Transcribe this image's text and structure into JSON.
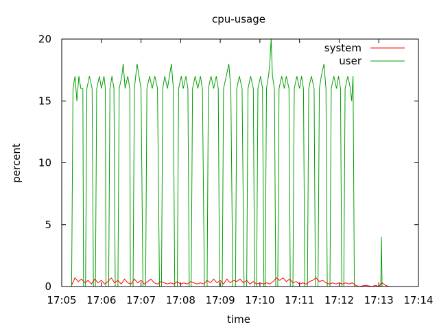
{
  "chart_data": {
    "type": "line",
    "title": "cpu-usage",
    "xlabel": "time",
    "ylabel": "percent",
    "ylim": [
      0,
      20
    ],
    "xlim": [
      "17:05",
      "17:14"
    ],
    "x_ticks": [
      "17:05",
      "17:06",
      "17:07",
      "17:08",
      "17:09",
      "17:10",
      "17:11",
      "17:12",
      "17:13",
      "17:14"
    ],
    "y_ticks": [
      "0",
      "5",
      "10",
      "15",
      "20"
    ],
    "legend_position": "top-right",
    "series": [
      {
        "name": "system",
        "color": "#ff0000",
        "points": [
          [
            "17:05:15",
            0.1
          ],
          [
            "17:05:20",
            0.7
          ],
          [
            "17:05:25",
            0.4
          ],
          [
            "17:05:30",
            0.6
          ],
          [
            "17:05:35",
            0.3
          ],
          [
            "17:05:40",
            0.5
          ],
          [
            "17:05:45",
            0.2
          ],
          [
            "17:05:50",
            0.6
          ],
          [
            "17:05:55",
            0.3
          ],
          [
            "17:06:00",
            0.5
          ],
          [
            "17:06:05",
            0.2
          ],
          [
            "17:06:10",
            0.4
          ],
          [
            "17:06:15",
            0.7
          ],
          [
            "17:06:20",
            0.3
          ],
          [
            "17:06:25",
            0.5
          ],
          [
            "17:06:30",
            0.2
          ],
          [
            "17:06:35",
            0.6
          ],
          [
            "17:06:40",
            0.3
          ],
          [
            "17:06:45",
            0.2
          ],
          [
            "17:06:50",
            0.6
          ],
          [
            "17:06:55",
            0.3
          ],
          [
            "17:07:00",
            0.5
          ],
          [
            "17:07:05",
            0.2
          ],
          [
            "17:07:10",
            0.4
          ],
          [
            "17:07:15",
            0.6
          ],
          [
            "17:07:20",
            0.3
          ],
          [
            "17:07:25",
            0.2
          ],
          [
            "17:07:30",
            0.4
          ],
          [
            "17:07:35",
            0.3
          ],
          [
            "17:07:40",
            0.2
          ],
          [
            "17:07:45",
            0.3
          ],
          [
            "17:07:50",
            0.2
          ],
          [
            "17:07:55",
            0.4
          ],
          [
            "17:08:00",
            0.2
          ],
          [
            "17:08:05",
            0.3
          ],
          [
            "17:08:10",
            0.2
          ],
          [
            "17:08:15",
            0.4
          ],
          [
            "17:08:20",
            0.3
          ],
          [
            "17:08:25",
            0.2
          ],
          [
            "17:08:30",
            0.3
          ],
          [
            "17:08:35",
            0.2
          ],
          [
            "17:08:40",
            0.5
          ],
          [
            "17:08:45",
            0.3
          ],
          [
            "17:08:50",
            0.6
          ],
          [
            "17:08:55",
            0.3
          ],
          [
            "17:09:00",
            0.5
          ],
          [
            "17:09:05",
            0.2
          ],
          [
            "17:09:10",
            0.6
          ],
          [
            "17:09:15",
            0.3
          ],
          [
            "17:09:20",
            0.5
          ],
          [
            "17:09:25",
            0.4
          ],
          [
            "17:09:30",
            0.6
          ],
          [
            "17:09:35",
            0.3
          ],
          [
            "17:09:40",
            0.5
          ],
          [
            "17:09:45",
            0.2
          ],
          [
            "17:09:50",
            0.4
          ],
          [
            "17:09:55",
            0.2
          ],
          [
            "17:10:00",
            0.3
          ],
          [
            "17:10:05",
            0.2
          ],
          [
            "17:10:10",
            0.3
          ],
          [
            "17:10:15",
            0.2
          ],
          [
            "17:10:20",
            0.4
          ],
          [
            "17:10:25",
            0.7
          ],
          [
            "17:10:30",
            0.5
          ],
          [
            "17:10:35",
            0.7
          ],
          [
            "17:10:40",
            0.4
          ],
          [
            "17:10:45",
            0.6
          ],
          [
            "17:10:50",
            0.3
          ],
          [
            "17:10:55",
            0.4
          ],
          [
            "17:11:00",
            0.2
          ],
          [
            "17:11:05",
            0.3
          ],
          [
            "17:11:10",
            0.2
          ],
          [
            "17:11:15",
            0.4
          ],
          [
            "17:11:20",
            0.5
          ],
          [
            "17:11:25",
            0.7
          ],
          [
            "17:11:30",
            0.4
          ],
          [
            "17:11:35",
            0.5
          ],
          [
            "17:11:40",
            0.3
          ],
          [
            "17:11:45",
            0.2
          ],
          [
            "17:11:50",
            0.3
          ],
          [
            "17:11:55",
            0.2
          ],
          [
            "17:12:00",
            0.3
          ],
          [
            "17:12:05",
            0.2
          ],
          [
            "17:12:10",
            0.3
          ],
          [
            "17:12:15",
            0.2
          ],
          [
            "17:12:20",
            0.3
          ],
          [
            "17:12:25",
            0.1
          ],
          [
            "17:12:30",
            0.0
          ],
          [
            "17:12:40",
            0.1
          ],
          [
            "17:12:50",
            0.0
          ],
          [
            "17:12:55",
            0.1
          ],
          [
            "17:13:00",
            0.0
          ],
          [
            "17:13:05",
            0.3
          ],
          [
            "17:13:10",
            0.1
          ],
          [
            "17:13:15",
            0.0
          ],
          [
            "17:13:20",
            0.0
          ]
        ]
      },
      {
        "name": "user",
        "color": "#00a000",
        "points": [
          [
            "17:05:15",
            0.0
          ],
          [
            "17:05:17",
            16.0
          ],
          [
            "17:05:20",
            17.0
          ],
          [
            "17:05:23",
            15.0
          ],
          [
            "17:05:26",
            17.0
          ],
          [
            "17:05:29",
            16.0
          ],
          [
            "17:05:32",
            16.0
          ],
          [
            "17:05:33",
            0.0
          ],
          [
            "17:05:36",
            0.0
          ],
          [
            "17:05:38",
            16.0
          ],
          [
            "17:05:42",
            17.0
          ],
          [
            "17:05:46",
            16.0
          ],
          [
            "17:05:48",
            0.0
          ],
          [
            "17:05:51",
            0.0
          ],
          [
            "17:05:53",
            16.0
          ],
          [
            "17:05:57",
            17.0
          ],
          [
            "17:06:00",
            16.0
          ],
          [
            "17:06:04",
            17.0
          ],
          [
            "17:06:06",
            16.0
          ],
          [
            "17:06:07",
            0.0
          ],
          [
            "17:06:11",
            0.0
          ],
          [
            "17:06:13",
            16.0
          ],
          [
            "17:06:16",
            17.0
          ],
          [
            "17:06:19",
            16.0
          ],
          [
            "17:06:21",
            0.0
          ],
          [
            "17:06:25",
            0.0
          ],
          [
            "17:06:27",
            16.0
          ],
          [
            "17:06:31",
            17.0
          ],
          [
            "17:06:33",
            18.0
          ],
          [
            "17:06:36",
            16.0
          ],
          [
            "17:06:40",
            17.0
          ],
          [
            "17:06:43",
            16.0
          ],
          [
            "17:06:44",
            0.0
          ],
          [
            "17:06:48",
            0.0
          ],
          [
            "17:06:50",
            16.0
          ],
          [
            "17:06:54",
            18.0
          ],
          [
            "17:06:57",
            17.0
          ],
          [
            "17:07:00",
            16.0
          ],
          [
            "17:07:03",
            0.0
          ],
          [
            "17:07:07",
            0.0
          ],
          [
            "17:07:09",
            16.0
          ],
          [
            "17:07:13",
            17.0
          ],
          [
            "17:07:17",
            16.0
          ],
          [
            "17:07:21",
            17.0
          ],
          [
            "17:07:25",
            16.0
          ],
          [
            "17:07:28",
            0.0
          ],
          [
            "17:07:31",
            0.0
          ],
          [
            "17:07:33",
            16.0
          ],
          [
            "17:07:36",
            17.0
          ],
          [
            "17:07:40",
            16.0
          ],
          [
            "17:07:43",
            17.0
          ],
          [
            "17:07:46",
            18.0
          ],
          [
            "17:07:49",
            16.0
          ],
          [
            "17:07:51",
            0.0
          ],
          [
            "17:07:55",
            0.0
          ],
          [
            "17:07:57",
            16.0
          ],
          [
            "17:08:01",
            17.0
          ],
          [
            "17:08:04",
            16.0
          ],
          [
            "17:08:08",
            17.0
          ],
          [
            "17:08:11",
            16.0
          ],
          [
            "17:08:13",
            0.0
          ],
          [
            "17:08:16",
            0.0
          ],
          [
            "17:08:18",
            16.0
          ],
          [
            "17:08:22",
            17.0
          ],
          [
            "17:08:26",
            16.0
          ],
          [
            "17:08:30",
            17.0
          ],
          [
            "17:08:33",
            16.0
          ],
          [
            "17:08:36",
            0.0
          ],
          [
            "17:08:40",
            0.0
          ],
          [
            "17:08:42",
            16.0
          ],
          [
            "17:08:46",
            17.0
          ],
          [
            "17:08:50",
            16.0
          ],
          [
            "17:08:54",
            17.0
          ],
          [
            "17:08:57",
            16.0
          ],
          [
            "17:08:59",
            0.0
          ],
          [
            "17:09:03",
            0.0
          ],
          [
            "17:09:05",
            16.0
          ],
          [
            "17:09:09",
            17.0
          ],
          [
            "17:09:13",
            18.0
          ],
          [
            "17:09:16",
            16.0
          ],
          [
            "17:09:19",
            0.0
          ],
          [
            "17:09:23",
            0.0
          ],
          [
            "17:09:25",
            16.0
          ],
          [
            "17:09:29",
            17.0
          ],
          [
            "17:09:33",
            16.0
          ],
          [
            "17:09:36",
            0.0
          ],
          [
            "17:09:40",
            0.0
          ],
          [
            "17:09:42",
            16.0
          ],
          [
            "17:09:46",
            17.0
          ],
          [
            "17:09:50",
            16.0
          ],
          [
            "17:09:52",
            0.0
          ],
          [
            "17:09:55",
            0.0
          ],
          [
            "17:09:57",
            16.0
          ],
          [
            "17:10:01",
            17.0
          ],
          [
            "17:10:04",
            16.0
          ],
          [
            "17:10:06",
            0.0
          ],
          [
            "17:10:08",
            0.0
          ],
          [
            "17:10:10",
            16.0
          ],
          [
            "17:10:13",
            17.0
          ],
          [
            "17:10:15",
            18.0
          ],
          [
            "17:10:17",
            20.0
          ],
          [
            "17:10:19",
            17.0
          ],
          [
            "17:10:22",
            16.0
          ],
          [
            "17:10:24",
            0.0
          ],
          [
            "17:10:27",
            0.0
          ],
          [
            "17:10:29",
            16.0
          ],
          [
            "17:10:33",
            17.0
          ],
          [
            "17:10:37",
            16.0
          ],
          [
            "17:10:40",
            17.0
          ],
          [
            "17:10:44",
            16.0
          ],
          [
            "17:10:46",
            0.0
          ],
          [
            "17:10:50",
            0.0
          ],
          [
            "17:10:52",
            16.0
          ],
          [
            "17:10:56",
            17.0
          ],
          [
            "17:11:00",
            16.0
          ],
          [
            "17:11:03",
            17.0
          ],
          [
            "17:11:06",
            16.0
          ],
          [
            "17:11:08",
            0.0
          ],
          [
            "17:11:12",
            0.0
          ],
          [
            "17:11:14",
            16.0
          ],
          [
            "17:11:18",
            17.0
          ],
          [
            "17:11:22",
            16.0
          ],
          [
            "17:11:24",
            0.0
          ],
          [
            "17:11:28",
            0.0
          ],
          [
            "17:11:30",
            16.0
          ],
          [
            "17:11:33",
            17.0
          ],
          [
            "17:11:37",
            18.0
          ],
          [
            "17:11:40",
            16.0
          ],
          [
            "17:11:42",
            0.0
          ],
          [
            "17:11:46",
            0.0
          ],
          [
            "17:11:48",
            16.0
          ],
          [
            "17:11:52",
            17.0
          ],
          [
            "17:11:56",
            16.0
          ],
          [
            "17:11:59",
            17.0
          ],
          [
            "17:12:02",
            16.0
          ],
          [
            "17:12:04",
            0.0
          ],
          [
            "17:12:07",
            0.0
          ],
          [
            "17:12:09",
            16.0
          ],
          [
            "17:12:13",
            17.0
          ],
          [
            "17:12:17",
            16.0
          ],
          [
            "17:12:19",
            15.0
          ],
          [
            "17:12:21",
            17.0
          ],
          [
            "17:12:23",
            0.0
          ],
          [
            "17:12:30",
            0.0
          ],
          [
            "17:12:40",
            0.0
          ],
          [
            "17:12:50",
            0.0
          ],
          [
            "17:12:55",
            0.0
          ],
          [
            "17:13:00",
            0.0
          ],
          [
            "17:13:03",
            0.0
          ],
          [
            "17:13:04",
            4.0
          ],
          [
            "17:13:05",
            0.0
          ],
          [
            "17:13:10",
            0.0
          ],
          [
            "17:13:15",
            0.0
          ],
          [
            "17:13:20",
            0.0
          ]
        ]
      }
    ]
  }
}
